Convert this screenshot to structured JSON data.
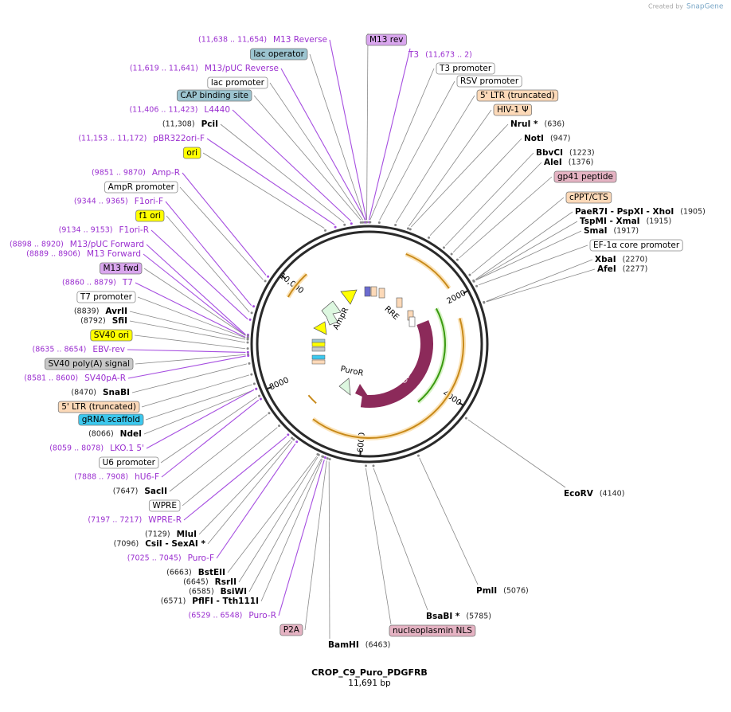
{
  "header": {
    "credit": "Created by",
    "brand": "SnapGene"
  },
  "labels": [
    {
      "text": "M13 Reverse",
      "note": "(11,638 .. 11,654)"
    },
    {
      "text": "lac operator"
    },
    {
      "text": "M13/pUC Reverse",
      "note": "(11,619 .. 11,641)"
    },
    {
      "text": "lac promoter"
    },
    {
      "text": "CAP binding site"
    },
    {
      "text": "L4440",
      "note": "(11,406 .. 11,423)"
    },
    {
      "text": "PciI",
      "note": "(11,308)"
    },
    {
      "text": "pBR322ori-F",
      "note": "(11,153 .. 11,172)"
    },
    {
      "text": "ori"
    },
    {
      "text": "Amp-R",
      "note": "(9851 .. 9870)"
    },
    {
      "text": "AmpR promoter"
    },
    {
      "text": "F1ori-F",
      "note": "(9344 .. 9365)"
    },
    {
      "text": "f1 ori"
    },
    {
      "text": "F1ori-R",
      "note": "(9134 .. 9153)"
    },
    {
      "text": "M13/pUC Forward",
      "note": "(8898 .. 8920)"
    },
    {
      "text": "M13 Forward",
      "note": "(8889 .. 8906)"
    },
    {
      "text": "M13 fwd"
    },
    {
      "text": "T7",
      "note": "(8860 .. 8879)"
    },
    {
      "text": "T7 promoter"
    },
    {
      "text": "AvrII",
      "note": "(8839)"
    },
    {
      "text": "SfiI",
      "note": "(8792)"
    },
    {
      "text": "SV40 ori"
    },
    {
      "text": "EBV-rev",
      "note": "(8635 .. 8654)"
    },
    {
      "text": "SV40 poly(A) signal"
    },
    {
      "text": "SV40pA-R",
      "note": "(8581 .. 8600)"
    },
    {
      "text": "SnaBI",
      "note": "(8470)"
    },
    {
      "text": "5' LTR (truncated)"
    },
    {
      "text": "gRNA scaffold"
    },
    {
      "text": "NdeI",
      "note": "(8066)"
    },
    {
      "text": "LKO.1 5'",
      "note": "(8059 .. 8078)"
    },
    {
      "text": "U6 promoter"
    },
    {
      "text": "hU6-F",
      "note": "(7888 .. 7908)"
    },
    {
      "text": "SacII",
      "note": "(7647)"
    },
    {
      "text": "WPRE"
    },
    {
      "text": "WPRE-R",
      "note": "(7197 .. 7217)"
    },
    {
      "text": "MluI",
      "note": "(7129)"
    },
    {
      "text": "CsiI - SexAI *",
      "note": "(7096)"
    },
    {
      "text": "Puro-F",
      "note": "(7025 .. 7045)"
    },
    {
      "text": "BstEII",
      "note": "(6663)"
    },
    {
      "text": "RsrII",
      "note": "(6645)"
    },
    {
      "text": "BsiWI",
      "note": "(6585)"
    },
    {
      "text": "PflFI - Tth111I",
      "note": "(6571)"
    },
    {
      "text": "Puro-R",
      "note": "(6529 .. 6548)"
    },
    {
      "text": "P2A"
    },
    {
      "text": "BamHI",
      "note": "(6463)"
    },
    {
      "text": "nucleoplasmin NLS"
    },
    {
      "text": "BsaBI *",
      "note": "(5785)"
    },
    {
      "text": "PmlI",
      "note": "(5076)"
    },
    {
      "text": "EcoRV",
      "note": "(4140)"
    },
    {
      "text": "M13 rev"
    },
    {
      "text": "T3",
      "note": "(11,673 .. 2)"
    },
    {
      "text": "T3 promoter"
    },
    {
      "text": "RSV promoter"
    },
    {
      "text": "5' LTR (truncated)"
    },
    {
      "text": "HIV-1 Ψ"
    },
    {
      "text": "NruI *",
      "note": "(636)"
    },
    {
      "text": "NotI",
      "note": "(947)"
    },
    {
      "text": "BbvCI",
      "note": "(1223)"
    },
    {
      "text": "AleI",
      "note": "(1376)"
    },
    {
      "text": "gp41 peptide"
    },
    {
      "text": "cPPT/CTS"
    },
    {
      "text": "PaeR7I - PspXI - XhoI",
      "note": "(1905)"
    },
    {
      "text": "TspMI - XmaI",
      "note": "(1915)"
    },
    {
      "text": "SmaI",
      "note": "(1917)"
    },
    {
      "text": "EF-1α core promoter"
    },
    {
      "text": "XbaI",
      "note": "(2270)"
    },
    {
      "text": "AfeI",
      "note": "(2277)"
    }
  ],
  "ring_ticks": [
    "2000",
    "4000",
    "6000",
    "8000",
    "10,000"
  ],
  "features": [
    "AmpR",
    "RRE",
    "Cas9",
    "PuroR"
  ],
  "footer": {
    "name": "CROP_C9_Puro_PDGFRB",
    "length": "11,691 bp"
  }
}
